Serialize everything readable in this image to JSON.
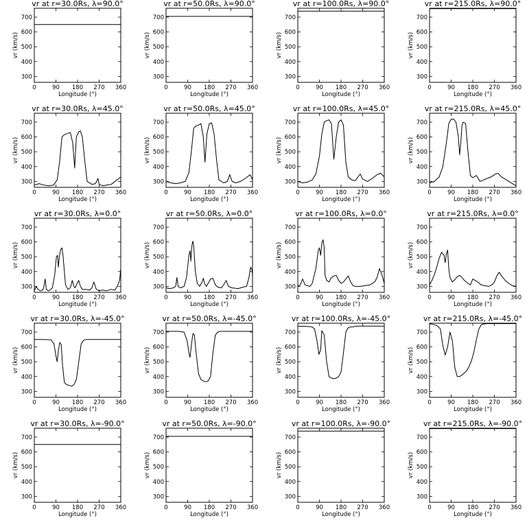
{
  "chart_data": {
    "type": "line",
    "x_ticks": [
      0,
      90,
      180,
      270,
      360
    ],
    "y_ticks": [
      300,
      400,
      500,
      600,
      700
    ],
    "xlim": [
      0,
      360
    ],
    "ylim": [
      260,
      760
    ],
    "grid": false,
    "panels": [
      {
        "title": "vr at r=30.0Rs, λ=90.0°",
        "xlabel": "Longitude (°)",
        "ylabel": "vr (km/s)",
        "x": [
          0,
          360
        ],
        "y": [
          650,
          650
        ]
      },
      {
        "title": "vr at r=50.0Rs, λ=90.0°",
        "xlabel": "Longitude (°)",
        "ylabel": "vr (km/s)",
        "x": [
          0,
          360
        ],
        "y": [
          705,
          705
        ]
      },
      {
        "title": "vr at r=100.0Rs, λ=90.0°",
        "xlabel": "Longitude (°)",
        "ylabel": "vr (km/s)",
        "x": [
          0,
          360
        ],
        "y": [
          740,
          740
        ]
      },
      {
        "title": "vr at r=215.0Rs, λ=90.0°",
        "xlabel": "Longitude (°)",
        "ylabel": "vr (km/s)",
        "x": [
          0,
          360
        ],
        "y": [
          757,
          757
        ]
      },
      {
        "title": "vr at r=30.0Rs, λ=45.0°",
        "xlabel": "Longitude (°)",
        "ylabel": "vr (km/s)",
        "x": [
          0,
          20,
          40,
          60,
          80,
          95,
          105,
          115,
          125,
          140,
          150,
          160,
          168,
          175,
          185,
          192,
          200,
          210,
          220,
          240,
          255,
          265,
          270,
          285,
          300,
          320,
          340,
          360
        ],
        "y": [
          275,
          285,
          275,
          270,
          275,
          310,
          430,
          600,
          615,
          625,
          630,
          560,
          390,
          600,
          635,
          640,
          600,
          440,
          300,
          280,
          285,
          320,
          280,
          270,
          275,
          280,
          305,
          330
        ]
      },
      {
        "title": "vr at r=50.0Rs, λ=45.0°",
        "xlabel": "Longitude (°)",
        "ylabel": "vr (km/s)",
        "x": [
          0,
          20,
          40,
          60,
          80,
          95,
          105,
          115,
          125,
          135,
          145,
          155,
          162,
          170,
          180,
          190,
          200,
          210,
          220,
          240,
          255,
          265,
          275,
          290,
          310,
          330,
          350,
          360
        ],
        "y": [
          300,
          290,
          285,
          290,
          300,
          360,
          500,
          660,
          675,
          680,
          690,
          600,
          430,
          620,
          690,
          695,
          620,
          450,
          310,
          290,
          300,
          345,
          300,
          290,
          300,
          320,
          345,
          310
        ]
      },
      {
        "title": "vr at r=100.0Rs, λ=45.0°",
        "xlabel": "Longitude (°)",
        "ylabel": "vr (km/s)",
        "x": [
          0,
          20,
          40,
          60,
          75,
          90,
          100,
          110,
          120,
          130,
          140,
          150,
          160,
          170,
          180,
          190,
          200,
          210,
          225,
          240,
          250,
          260,
          270,
          290,
          310,
          330,
          345,
          360
        ],
        "y": [
          300,
          290,
          295,
          310,
          350,
          470,
          620,
          700,
          710,
          715,
          690,
          450,
          600,
          700,
          715,
          680,
          430,
          330,
          310,
          305,
          330,
          350,
          315,
          300,
          320,
          345,
          355,
          330
        ]
      },
      {
        "title": "vr at r=215.0Rs, λ=45.0°",
        "xlabel": "Longitude (°)",
        "ylabel": "vr (km/s)",
        "x": [
          0,
          20,
          40,
          55,
          70,
          80,
          90,
          100,
          110,
          120,
          125,
          130,
          135,
          140,
          150,
          160,
          170,
          180,
          195,
          210,
          225,
          240,
          255,
          275,
          285,
          300,
          320,
          360
        ],
        "y": [
          290,
          300,
          330,
          400,
          560,
          690,
          720,
          720,
          700,
          600,
          480,
          560,
          680,
          700,
          690,
          500,
          340,
          325,
          340,
          300,
          310,
          320,
          330,
          350,
          355,
          330,
          310,
          270
        ]
      },
      {
        "title": "vr at r=30.0Rs, λ=0.0°",
        "xlabel": "Longitude (°)",
        "ylabel": "vr (km/s)",
        "x": [
          0,
          8,
          15,
          25,
          35,
          40,
          45,
          50,
          58,
          65,
          75,
          85,
          92,
          97,
          100,
          105,
          110,
          115,
          120,
          125,
          130,
          140,
          150,
          158,
          165,
          170,
          178,
          185,
          192,
          200,
          215,
          230,
          240,
          248,
          258,
          270,
          285,
          300,
          320,
          335,
          345,
          355,
          360
        ],
        "y": [
          270,
          300,
          280,
          270,
          275,
          300,
          350,
          280,
          270,
          275,
          290,
          380,
          500,
          510,
          430,
          510,
          550,
          560,
          500,
          400,
          310,
          280,
          290,
          340,
          300,
          290,
          320,
          340,
          300,
          280,
          280,
          275,
          290,
          330,
          280,
          270,
          275,
          270,
          280,
          275,
          300,
          340,
          420
        ]
      },
      {
        "title": "vr at r=50.0Rs, λ=0.0°",
        "xlabel": "Longitude (°)",
        "ylabel": "vr (km/s)",
        "x": [
          0,
          15,
          30,
          40,
          45,
          50,
          60,
          75,
          85,
          95,
          100,
          103,
          108,
          112,
          115,
          122,
          130,
          140,
          150,
          155,
          160,
          168,
          175,
          185,
          195,
          205,
          215,
          230,
          240,
          250,
          260,
          275,
          300,
          320,
          335,
          345,
          352,
          358,
          360
        ],
        "y": [
          290,
          285,
          290,
          300,
          360,
          300,
          290,
          300,
          360,
          510,
          540,
          470,
          580,
          605,
          570,
          400,
          320,
          300,
          330,
          355,
          320,
          300,
          320,
          350,
          355,
          310,
          295,
          290,
          310,
          340,
          300,
          290,
          285,
          295,
          300,
          360,
          430,
          410,
          370
        ]
      },
      {
        "title": "vr at r=100.0Rs, λ=0.0°",
        "xlabel": "Longitude (°)",
        "ylabel": "vr (km/s)",
        "x": [
          0,
          10,
          20,
          30,
          50,
          60,
          75,
          85,
          90,
          95,
          100,
          105,
          110,
          113,
          120,
          130,
          140,
          150,
          160,
          170,
          180,
          190,
          200,
          210,
          220,
          230,
          240,
          260,
          280,
          300,
          320,
          330,
          340,
          350,
          360
        ],
        "y": [
          300,
          310,
          350,
          310,
          300,
          320,
          420,
          540,
          560,
          510,
          590,
          615,
          560,
          380,
          340,
          330,
          360,
          370,
          375,
          340,
          320,
          330,
          350,
          370,
          330,
          305,
          300,
          300,
          305,
          310,
          330,
          360,
          420,
          380,
          320
        ]
      },
      {
        "title": "vr at r=215.0Rs, λ=0.0°",
        "xlabel": "Longitude (°)",
        "ylabel": "vr (km/s)",
        "x": [
          0,
          10,
          20,
          30,
          40,
          50,
          60,
          65,
          70,
          75,
          80,
          85,
          95,
          105,
          115,
          125,
          135,
          145,
          160,
          170,
          180,
          190,
          200,
          215,
          230,
          245,
          260,
          270,
          280,
          290,
          300,
          315,
          330,
          345,
          360
        ],
        "y": [
          310,
          340,
          380,
          430,
          490,
          530,
          510,
          460,
          520,
          545,
          420,
          360,
          330,
          345,
          365,
          375,
          360,
          340,
          320,
          310,
          350,
          340,
          330,
          310,
          305,
          300,
          310,
          330,
          370,
          395,
          370,
          340,
          320,
          305,
          300
        ]
      },
      {
        "title": "vr at r=30.0Rs, λ=-45.0°",
        "xlabel": "Longitude (°)",
        "ylabel": "vr (km/s)",
        "x": [
          0,
          40,
          70,
          82,
          90,
          95,
          100,
          106,
          112,
          118,
          125,
          135,
          145,
          155,
          165,
          175,
          185,
          195,
          205,
          215,
          225,
          240,
          300,
          360
        ],
        "y": [
          650,
          650,
          648,
          620,
          540,
          500,
          570,
          630,
          615,
          470,
          360,
          345,
          340,
          335,
          345,
          380,
          500,
          620,
          645,
          650,
          650,
          650,
          650,
          650
        ]
      },
      {
        "title": "vr at r=50.0Rs, λ=-45.0°",
        "xlabel": "Longitude (°)",
        "ylabel": "vr (km/s)",
        "x": [
          0,
          50,
          75,
          88,
          95,
          100,
          106,
          112,
          118,
          125,
          135,
          145,
          155,
          165,
          175,
          185,
          195,
          205,
          215,
          225,
          240,
          300,
          360
        ],
        "y": [
          705,
          705,
          700,
          640,
          560,
          530,
          620,
          690,
          680,
          560,
          420,
          380,
          370,
          365,
          370,
          400,
          560,
          680,
          700,
          705,
          705,
          705,
          705
        ]
      },
      {
        "title": "vr at r=100.0Rs, λ=-45.0°",
        "xlabel": "Longitude (°)",
        "ylabel": "vr (km/s)",
        "x": [
          0,
          40,
          60,
          70,
          80,
          88,
          95,
          100,
          110,
          120,
          130,
          140,
          150,
          160,
          170,
          180,
          190,
          200,
          210,
          220,
          230,
          240,
          300,
          360
        ],
        "y": [
          740,
          738,
          735,
          720,
          640,
          550,
          580,
          710,
          680,
          500,
          400,
          390,
          385,
          390,
          400,
          430,
          560,
          700,
          730,
          735,
          735,
          740,
          740,
          740
        ]
      },
      {
        "title": "vr at r=215.0Rs, λ=-45.0°",
        "xlabel": "Longitude (°)",
        "ylabel": "vr (km/s)",
        "x": [
          0,
          20,
          35,
          45,
          55,
          65,
          75,
          85,
          95,
          105,
          115,
          125,
          135,
          145,
          155,
          165,
          175,
          185,
          195,
          205,
          215,
          225,
          240,
          300,
          360
        ],
        "y": [
          757,
          750,
          740,
          720,
          610,
          545,
          600,
          700,
          640,
          460,
          400,
          400,
          410,
          425,
          440,
          470,
          510,
          570,
          650,
          720,
          750,
          755,
          757,
          757,
          757
        ]
      },
      {
        "title": "vr at r=30.0Rs, λ=-90.0°",
        "xlabel": "Longitude (°)",
        "ylabel": "vr (km/s)",
        "x": [
          0,
          360
        ],
        "y": [
          650,
          650
        ]
      },
      {
        "title": "vr at r=50.0Rs, λ=-90.0°",
        "xlabel": "Longitude (°)",
        "ylabel": "vr (km/s)",
        "x": [
          0,
          360
        ],
        "y": [
          705,
          705
        ]
      },
      {
        "title": "vr at r=100.0Rs, λ=-90.0°",
        "xlabel": "Longitude (°)",
        "ylabel": "vr (km/s)",
        "x": [
          0,
          360
        ],
        "y": [
          740,
          740
        ]
      },
      {
        "title": "vr at r=215.0Rs, λ=-90.0°",
        "xlabel": "Longitude (°)",
        "ylabel": "vr (km/s)",
        "x": [
          0,
          360
        ],
        "y": [
          757,
          757
        ]
      }
    ]
  }
}
